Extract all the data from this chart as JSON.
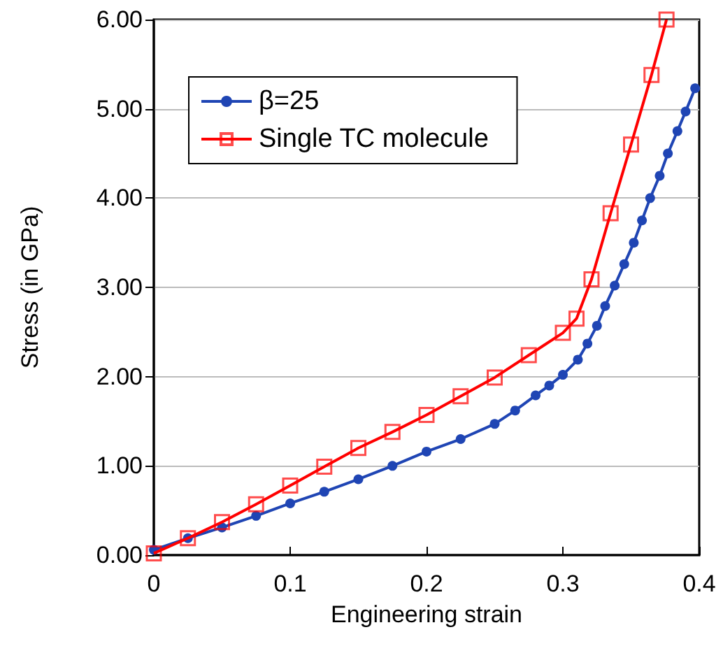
{
  "chart_data": {
    "type": "line",
    "xlabel": "Engineering strain",
    "ylabel": "Stress (in GPa)",
    "xlim": [
      0,
      0.4
    ],
    "xticks": [
      0,
      0.1,
      0.2,
      0.3,
      0.4
    ],
    "ylim": [
      0,
      6
    ],
    "yticks": [
      {
        "value": 0,
        "label": "0.00"
      },
      {
        "value": 1,
        "label": "1.00"
      },
      {
        "value": 2,
        "label": "2.00"
      },
      {
        "value": 3,
        "label": "3.00"
      },
      {
        "value": 4,
        "label": "4.00"
      },
      {
        "value": 5,
        "label": "5.00"
      },
      {
        "value": 6,
        "label": "6.00"
      }
    ],
    "grid": "y",
    "legend": "top left",
    "series": [
      {
        "name": "β=25",
        "color": "#1f45b4",
        "marker": "circle",
        "x": [
          0,
          0.025,
          0.05,
          0.075,
          0.1,
          0.125,
          0.15,
          0.175,
          0.2,
          0.225,
          0.25,
          0.265,
          0.28,
          0.29,
          0.3,
          0.311,
          0.318,
          0.325,
          0.331,
          0.338,
          0.345,
          0.352,
          0.358,
          0.364,
          0.371,
          0.377,
          0.384,
          0.39,
          0.397
        ],
        "values": [
          0.06,
          0.19,
          0.31,
          0.44,
          0.58,
          0.71,
          0.85,
          1.0,
          1.16,
          1.3,
          1.47,
          1.62,
          1.79,
          1.9,
          2.02,
          2.19,
          2.37,
          2.57,
          2.79,
          3.02,
          3.26,
          3.5,
          3.75,
          4.0,
          4.25,
          4.5,
          4.75,
          4.97,
          5.23
        ]
      },
      {
        "name": "Single TC molecule",
        "color": "#ff0000",
        "marker": "square",
        "x": [
          0,
          0.025,
          0.05,
          0.075,
          0.1,
          0.125,
          0.15,
          0.175,
          0.2,
          0.225,
          0.25,
          0.275,
          0.3,
          0.31,
          0.321,
          0.335,
          0.35,
          0.365,
          0.376
        ],
        "values": [
          0.02,
          0.19,
          0.37,
          0.57,
          0.78,
          0.99,
          1.2,
          1.38,
          1.57,
          1.78,
          1.99,
          2.24,
          2.49,
          2.65,
          3.09,
          3.83,
          4.6,
          5.38,
          6.0
        ]
      }
    ]
  }
}
